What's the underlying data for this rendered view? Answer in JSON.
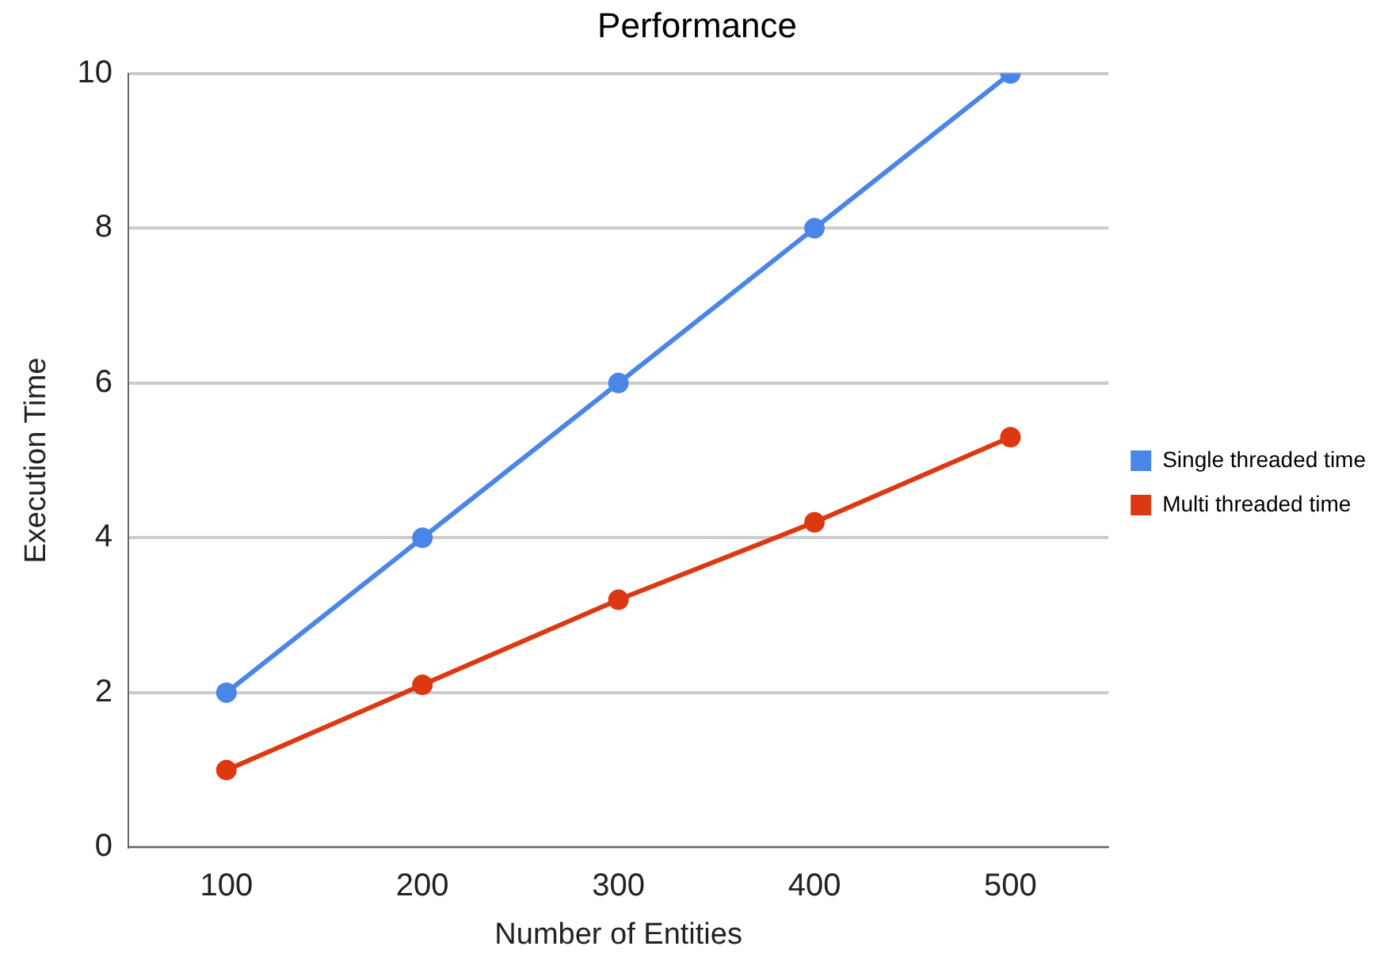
{
  "chart_data": {
    "type": "line",
    "title": "Performance",
    "xlabel": "Number of Entities",
    "ylabel": "Execution Time",
    "categories": [
      "100",
      "200",
      "300",
      "400",
      "500"
    ],
    "series": [
      {
        "name": "Single threaded time",
        "color": "#4a86e8",
        "values": [
          2,
          4,
          6,
          8,
          10
        ]
      },
      {
        "name": "Multi threaded time",
        "color": "#dc3912",
        "values": [
          1.0,
          2.1,
          3.2,
          4.2,
          5.3
        ]
      }
    ],
    "ylim": [
      0,
      10
    ],
    "yticks": [
      0,
      2,
      4,
      6,
      8,
      10
    ],
    "grid": "y",
    "legend": "right",
    "marker": "circle",
    "line_style": "solid"
  }
}
